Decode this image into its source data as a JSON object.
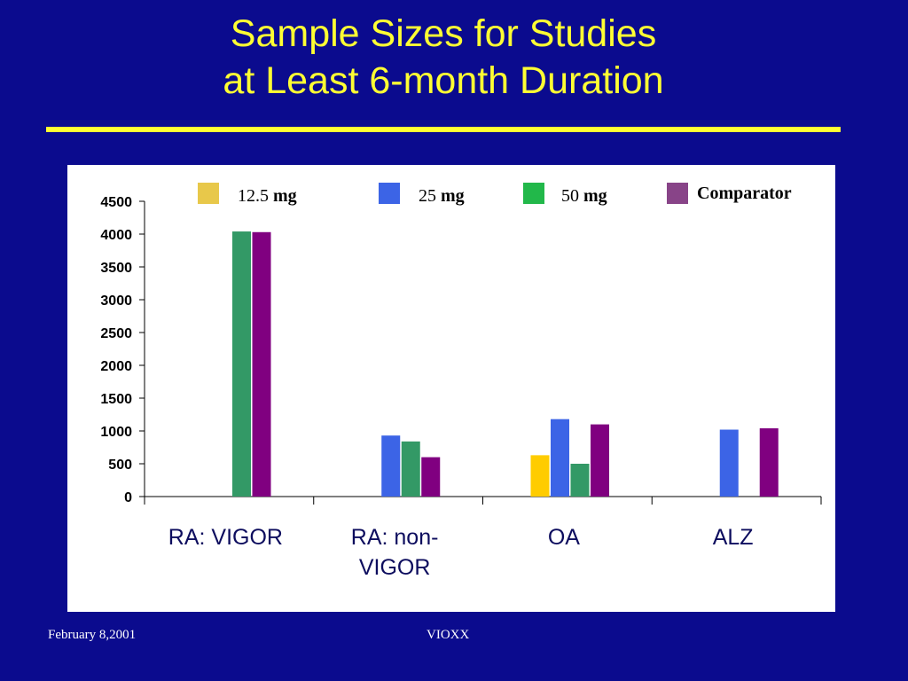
{
  "slide": {
    "title_line1": "Sample Sizes for Studies",
    "title_line2": "at Least 6-month Duration",
    "footer_date": "February 8,2001",
    "footer_center": "VIOXX"
  },
  "colors": {
    "background": "#0b0b8e",
    "title": "#ffff33",
    "panel": "#ffffff"
  },
  "chart_data": {
    "type": "bar",
    "categories": [
      "RA: VIGOR",
      "RA: non-VIGOR",
      "OA",
      "ALZ"
    ],
    "category_label_lines": [
      [
        "RA: VIGOR"
      ],
      [
        "RA: non-",
        "VIGOR"
      ],
      [
        "OA"
      ],
      [
        "ALZ"
      ]
    ],
    "series": [
      {
        "name": "12.5 mg",
        "values": [
          null,
          null,
          630,
          null
        ],
        "color": "#ffcc00",
        "legend_color": "#e8c84a"
      },
      {
        "name": "25 mg",
        "values": [
          null,
          930,
          1180,
          1020
        ],
        "color": "#3c64e6",
        "legend_color": "#3c64e6"
      },
      {
        "name": "50 mg",
        "values": [
          4040,
          840,
          500,
          null
        ],
        "color": "#339966",
        "legend_color": "#22b84a"
      },
      {
        "name": "Comparator",
        "values": [
          4030,
          600,
          1100,
          1040
        ],
        "color": "#800080",
        "legend_color": "#884488"
      }
    ],
    "legend": [
      {
        "number": "12.5",
        "unit": "mg"
      },
      {
        "number": "25",
        "unit": "mg"
      },
      {
        "number": "50",
        "unit": "mg"
      },
      {
        "number": "",
        "unit": "Comparator"
      }
    ],
    "y_ticks": [
      0,
      500,
      1000,
      1500,
      2000,
      2500,
      3000,
      3500,
      4000,
      4500
    ],
    "ylim": [
      0,
      4500
    ],
    "grid": false,
    "legend_position": "top"
  }
}
